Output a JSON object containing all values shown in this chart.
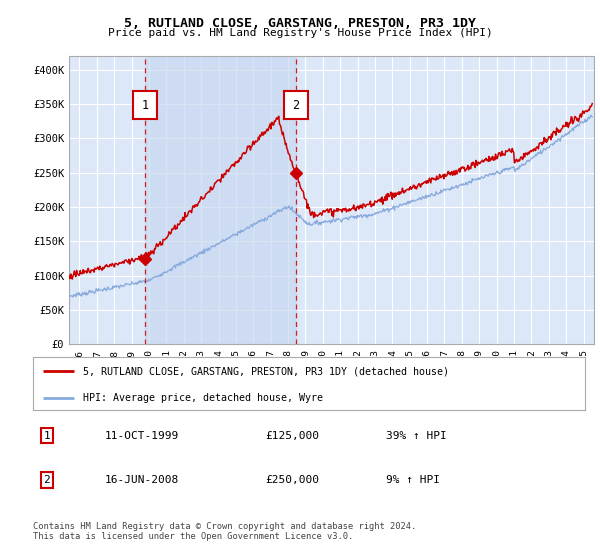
{
  "title": "5, RUTLAND CLOSE, GARSTANG, PRESTON, PR3 1DY",
  "subtitle": "Price paid vs. HM Land Registry's House Price Index (HPI)",
  "ylim": [
    0,
    420000
  ],
  "yticks": [
    0,
    50000,
    100000,
    150000,
    200000,
    250000,
    300000,
    350000,
    400000
  ],
  "ytick_labels": [
    "£0",
    "£50K",
    "£100K",
    "£150K",
    "£200K",
    "£250K",
    "£300K",
    "£350K",
    "£400K"
  ],
  "plot_bg_color": "#dce8f8",
  "grid_color": "#ffffff",
  "sale1_date": 1999.78,
  "sale1_price": 125000,
  "sale2_date": 2008.46,
  "sale2_price": 250000,
  "legend_line1": "5, RUTLAND CLOSE, GARSTANG, PRESTON, PR3 1DY (detached house)",
  "legend_line2": "HPI: Average price, detached house, Wyre",
  "annotation1_date": "11-OCT-1999",
  "annotation1_price": "£125,000",
  "annotation1_hpi": "39% ↑ HPI",
  "annotation2_date": "16-JUN-2008",
  "annotation2_price": "£250,000",
  "annotation2_hpi": "9% ↑ HPI",
  "footer": "Contains HM Land Registry data © Crown copyright and database right 2024.\nThis data is licensed under the Open Government Licence v3.0.",
  "line_color_house": "#cc0000",
  "line_color_hpi": "#88aadd",
  "dashed_line_color": "#cc0000",
  "fill_color": "#c8d8f0",
  "xlim_left": 1995.4,
  "xlim_right": 2025.6
}
